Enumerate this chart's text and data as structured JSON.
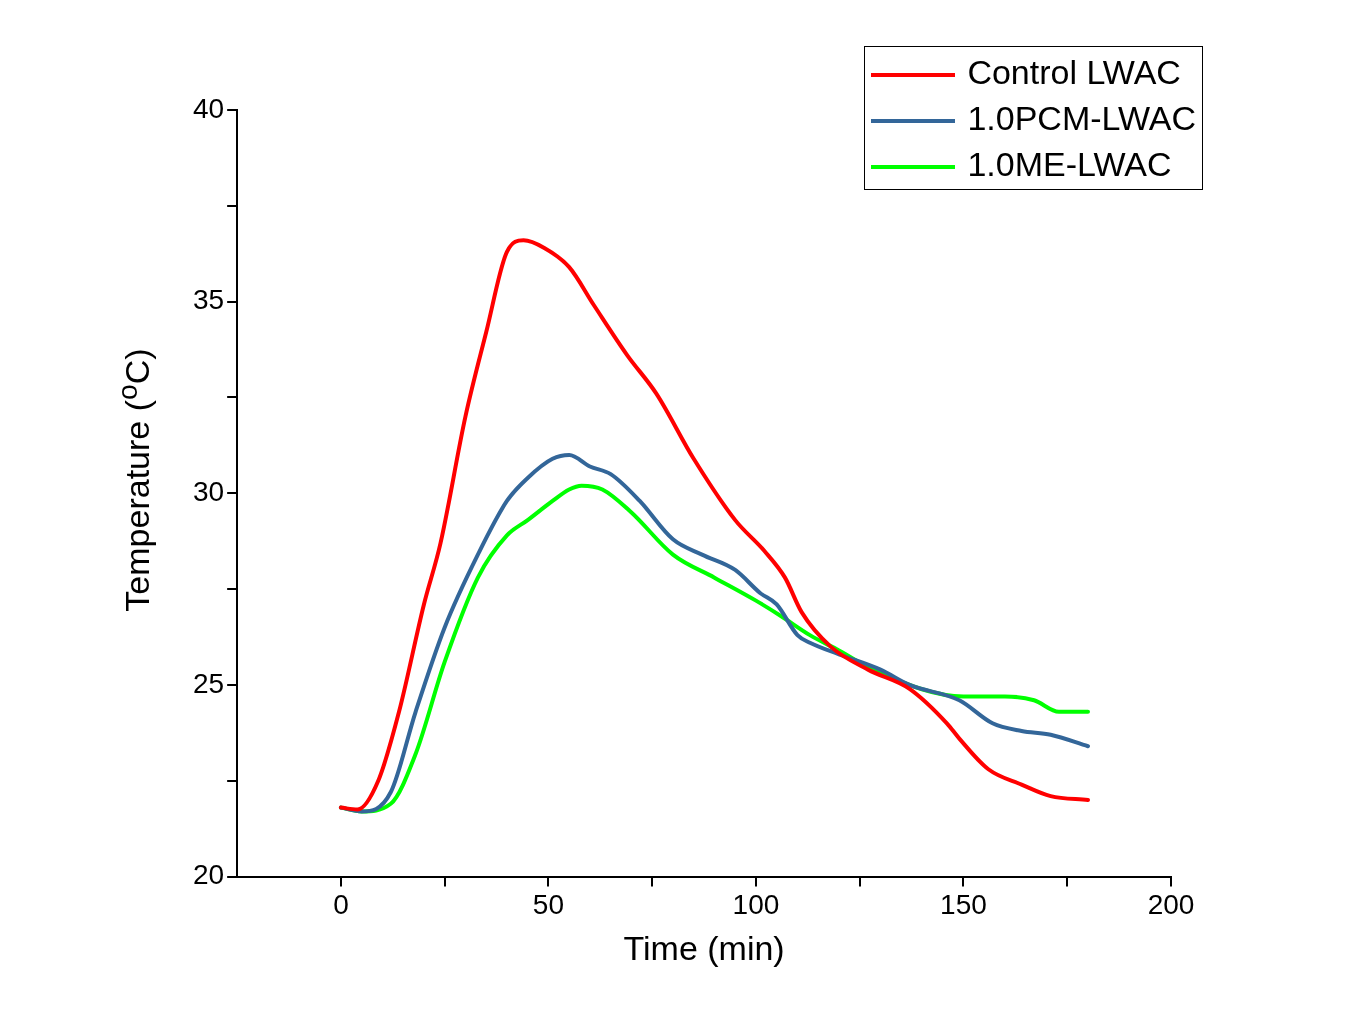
{
  "chart_data": {
    "type": "line",
    "xlabel": "Time (min)",
    "ylabel": "Temperature ($^{o}$C)",
    "xlim": [
      -25,
      200
    ],
    "ylim": [
      20,
      40
    ],
    "xticks": [
      0,
      {
        "value": 25,
        "label": null
      },
      50,
      {
        "value": 75,
        "label": null
      },
      100,
      {
        "value": 125,
        "label": null
      },
      150,
      {
        "value": 175,
        "label": null
      },
      200
    ],
    "yticks": [
      20,
      {
        "value": 22.5,
        "label": null
      },
      25,
      {
        "value": 27.5,
        "label": null
      },
      30,
      {
        "value": 32.5,
        "label": null
      },
      35,
      {
        "value": 37.5,
        "label": null
      },
      40
    ],
    "grid": false,
    "legend": "top right",
    "marker": "none",
    "line_style": "solid",
    "series": [
      {
        "name": "Control LWAC",
        "color": "#ff0000",
        "x": [
          0,
          4,
          9,
          14,
          20,
          24,
          30,
          35,
          40,
          44,
          49,
          55,
          61,
          69,
          76,
          85,
          95,
          102,
          107,
          111,
          118,
          127,
          137,
          146,
          149,
          156,
          164,
          171,
          180
        ],
        "values": [
          21.8,
          21.75,
          22.5,
          24.3,
          27.1,
          28.7,
          32.0,
          34.2,
          36.3,
          36.6,
          36.4,
          35.9,
          34.9,
          33.6,
          32.6,
          30.9,
          29.3,
          28.5,
          27.8,
          26.9,
          26.0,
          25.4,
          24.9,
          24.0,
          23.6,
          22.8,
          22.4,
          22.1,
          22.0
        ]
      },
      {
        "name": "1.0PCM-LWAC",
        "color": "#336699",
        "x": [
          0,
          5,
          12,
          18,
          25,
          33,
          40,
          45,
          51,
          55,
          60,
          65,
          72,
          80,
          87,
          95,
          101,
          105,
          110,
          113,
          120,
          130,
          137,
          149,
          157,
          164,
          171,
          180
        ],
        "values": [
          21.8,
          21.7,
          22.2,
          24.3,
          26.5,
          28.4,
          29.8,
          30.4,
          30.9,
          31.0,
          30.7,
          30.5,
          29.8,
          28.8,
          28.4,
          28.0,
          27.4,
          27.1,
          26.3,
          26.1,
          25.8,
          25.4,
          25.0,
          24.6,
          24.0,
          23.8,
          23.7,
          23.4
        ]
      },
      {
        "name": "1.0ME-LWAC",
        "color": "#00ff00",
        "x": [
          0,
          5,
          12,
          18,
          25,
          33,
          40,
          45,
          51,
          55,
          58,
          63,
          70,
          80,
          90,
          100,
          106,
          113,
          120,
          130,
          150,
          160,
          167,
          173,
          180
        ],
        "values": [
          21.8,
          21.7,
          21.9,
          23.2,
          25.6,
          27.8,
          28.9,
          29.3,
          29.8,
          30.1,
          30.2,
          30.1,
          29.5,
          28.4,
          27.8,
          27.2,
          26.8,
          26.3,
          25.9,
          25.3,
          24.7,
          24.7,
          24.6,
          24.3,
          24.3
        ]
      }
    ]
  }
}
